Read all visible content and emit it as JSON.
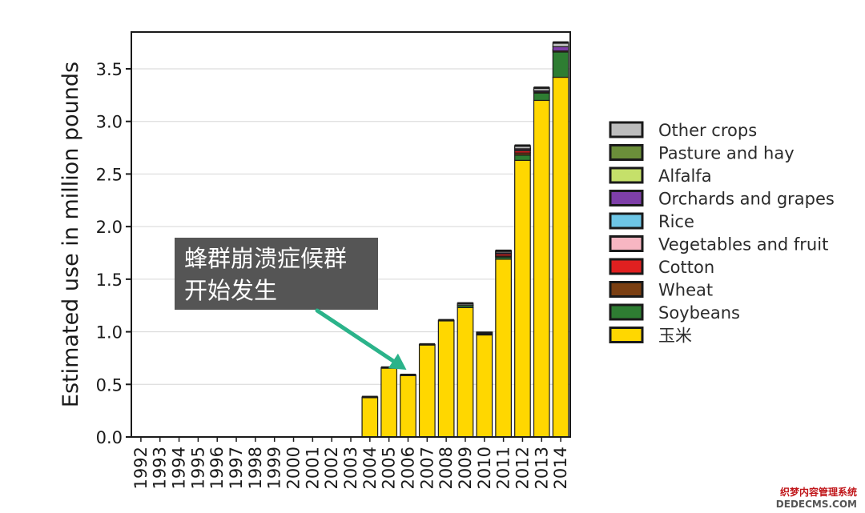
{
  "chart_data": {
    "type": "bar",
    "stacked": true,
    "title": "",
    "xlabel": "",
    "ylabel": "Estimated use in million pounds",
    "ylim": [
      0,
      3.85
    ],
    "yticks": [
      "0.0",
      "0.5",
      "1.0",
      "1.5",
      "2.0",
      "2.5",
      "3.0",
      "3.5"
    ],
    "grid": "horizontal",
    "legend_position": "right",
    "categories": [
      "1992",
      "1993",
      "1994",
      "1995",
      "1996",
      "1997",
      "1998",
      "1999",
      "2000",
      "2001",
      "2002",
      "2003",
      "2004",
      "2005",
      "2006",
      "2007",
      "2008",
      "2009",
      "2010",
      "2011",
      "2012",
      "2013",
      "2014"
    ],
    "series": [
      {
        "name": "玉米",
        "color": "#ffd700",
        "values": [
          0,
          0,
          0,
          0,
          0,
          0,
          0,
          0,
          0,
          0,
          0,
          0,
          0.38,
          0.66,
          0.59,
          0.88,
          1.11,
          1.23,
          0.97,
          1.69,
          2.63,
          3.2,
          3.42
        ]
      },
      {
        "name": "Soybeans",
        "color": "#2e7d32",
        "values": [
          0,
          0,
          0,
          0,
          0,
          0,
          0,
          0,
          0,
          0,
          0,
          0,
          0,
          0,
          0,
          0,
          0,
          0.02,
          0.005,
          0.02,
          0.05,
          0.07,
          0.24
        ]
      },
      {
        "name": "Wheat",
        "color": "#7a3f12",
        "values": [
          0,
          0,
          0,
          0,
          0,
          0,
          0,
          0,
          0,
          0,
          0,
          0,
          0,
          0,
          0,
          0,
          0,
          0,
          0,
          0.01,
          0.02,
          0.01,
          0.01
        ]
      },
      {
        "name": "Cotton",
        "color": "#e02020",
        "values": [
          0,
          0,
          0,
          0,
          0,
          0,
          0,
          0,
          0,
          0,
          0,
          0,
          0,
          0,
          0,
          0,
          0,
          0,
          0,
          0.02,
          0.02,
          0,
          0
        ]
      },
      {
        "name": "Vegetables and fruit",
        "color": "#f7b6c2",
        "values": [
          0,
          0,
          0,
          0,
          0,
          0,
          0,
          0,
          0,
          0,
          0,
          0,
          0,
          0,
          0,
          0,
          0,
          0,
          0,
          0,
          0.01,
          0,
          0
        ]
      },
      {
        "name": "Rice",
        "color": "#6ec6e6",
        "values": [
          0,
          0,
          0,
          0,
          0,
          0,
          0,
          0,
          0,
          0,
          0,
          0,
          0,
          0,
          0,
          0,
          0,
          0,
          0,
          0,
          0,
          0,
          0
        ]
      },
      {
        "name": "Orchards and grapes",
        "color": "#7e3fa8",
        "values": [
          0,
          0,
          0,
          0,
          0,
          0,
          0,
          0,
          0,
          0,
          0,
          0,
          0,
          0,
          0,
          0,
          0,
          0,
          0,
          0.01,
          0.01,
          0.01,
          0.04
        ]
      },
      {
        "name": "Alfalfa",
        "color": "#c5e06a",
        "values": [
          0,
          0,
          0,
          0,
          0,
          0,
          0,
          0,
          0,
          0,
          0,
          0,
          0,
          0,
          0,
          0,
          0,
          0,
          0,
          0,
          0,
          0,
          0
        ]
      },
      {
        "name": "Pasture and hay",
        "color": "#6b8e3a",
        "values": [
          0,
          0,
          0,
          0,
          0,
          0,
          0,
          0,
          0,
          0,
          0,
          0,
          0,
          0,
          0,
          0,
          0,
          0,
          0,
          0,
          0,
          0,
          0
        ]
      },
      {
        "name": "Other crops",
        "color": "#bdbdbd",
        "values": [
          0,
          0,
          0,
          0,
          0,
          0,
          0,
          0,
          0,
          0,
          0,
          0,
          0,
          0,
          0,
          0,
          0,
          0.02,
          0.01,
          0.02,
          0.03,
          0.03,
          0.04
        ]
      }
    ],
    "legend_order": [
      "Other crops",
      "Pasture and hay",
      "Alfalfa",
      "Orchards and grapes",
      "Rice",
      "Vegetables and fruit",
      "Cotton",
      "Wheat",
      "Soybeans",
      "玉米"
    ],
    "annotation": {
      "lines": [
        "蜂群崩溃症候群",
        "开始发生"
      ],
      "points_to": "2006",
      "box_color": "#555555",
      "arrow_color": "#2bb38a"
    }
  },
  "watermark": {
    "line1": "织梦内容管理系统",
    "line2": "DEDECMS.COM"
  }
}
